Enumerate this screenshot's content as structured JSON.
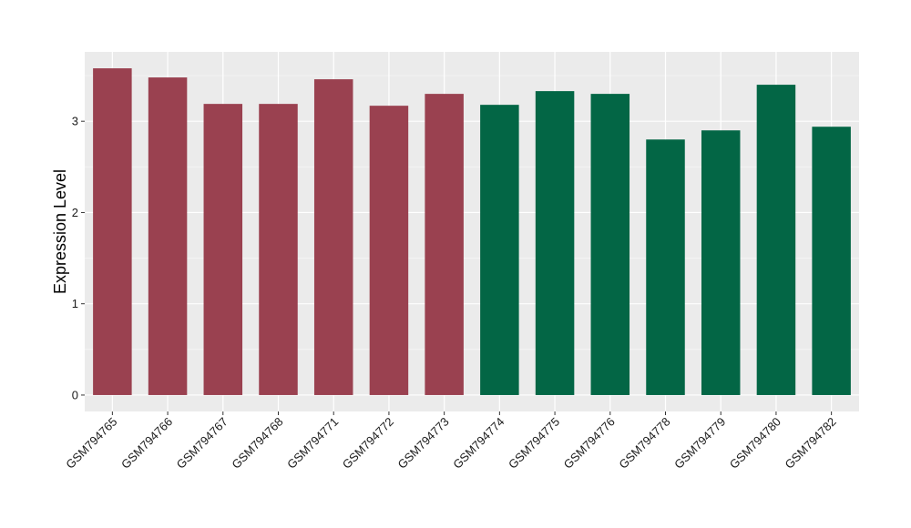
{
  "chart_data": {
    "type": "bar",
    "title": "",
    "xlabel": "",
    "ylabel": "Expression Level",
    "ylim": [
      -0.18,
      3.76
    ],
    "yticks": [
      0,
      1,
      2,
      3
    ],
    "grid": true,
    "legend": "none",
    "categories": [
      "GSM794765",
      "GSM794766",
      "GSM794767",
      "GSM794768",
      "GSM794771",
      "GSM794772",
      "GSM794773",
      "GSM794774",
      "GSM794775",
      "GSM794776",
      "GSM794778",
      "GSM794779",
      "GSM794780",
      "GSM794782"
    ],
    "values": [
      3.58,
      3.48,
      3.19,
      3.19,
      3.46,
      3.17,
      3.3,
      3.18,
      3.33,
      3.3,
      2.8,
      2.9,
      3.4,
      2.94
    ],
    "groups": [
      0,
      0,
      0,
      0,
      0,
      0,
      0,
      1,
      1,
      1,
      1,
      1,
      1,
      1
    ],
    "group_colors": [
      "#9a4150",
      "#036645"
    ]
  },
  "colors": {
    "panel": "#ebebeb",
    "grid_major": "#ffffff",
    "grid_minor": "#f5f5f5"
  }
}
